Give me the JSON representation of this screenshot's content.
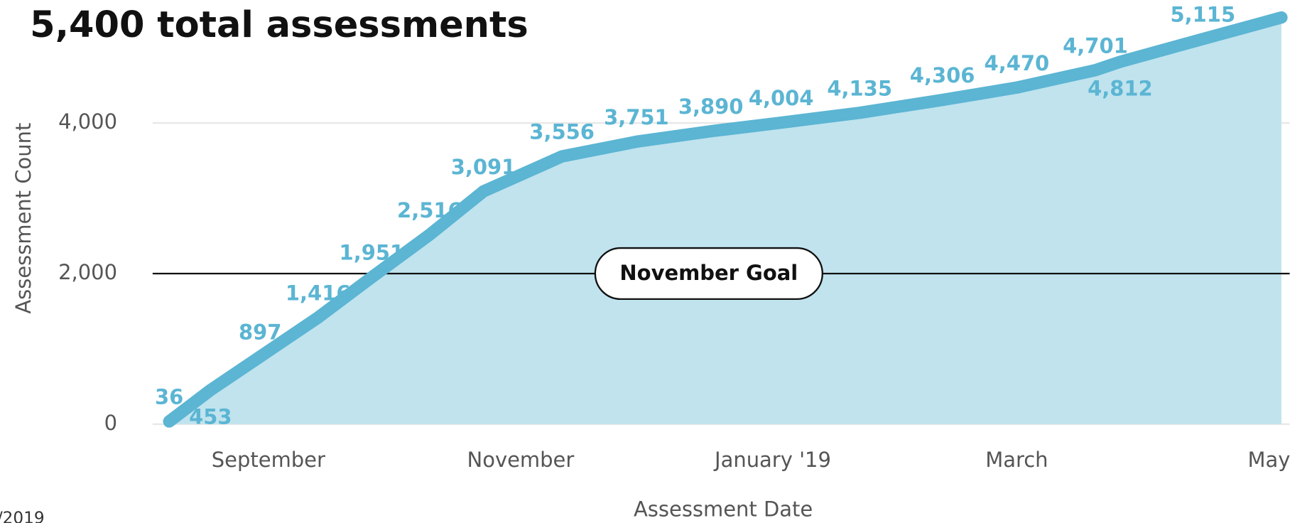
{
  "chart_data": {
    "type": "area",
    "title": "5,400 total assessments",
    "x_label": "Assessment Date",
    "y_label": "Assessment Count",
    "footer": "/2019",
    "x": [
      "2018-08-08",
      "2018-08-18",
      "2018-08-30",
      "2018-09-13",
      "2018-09-26",
      "2018-10-10",
      "2018-10-23",
      "2018-11-11",
      "2018-11-29",
      "2018-12-17",
      "2019-01-03",
      "2019-01-22",
      "2019-02-11",
      "2019-03-01",
      "2019-03-20",
      "2019-03-26",
      "2019-04-15",
      "2019-05-04"
    ],
    "series": [
      {
        "name": "Assessment Count",
        "color": "#5bb5d3",
        "fill": "#c0e3ee",
        "values": [
          36,
          453,
          897,
          1416,
          1951,
          2516,
          3091,
          3556,
          3751,
          3890,
          4004,
          4135,
          4306,
          4470,
          4701,
          4812,
          5115,
          5400
        ],
        "value_labels": [
          "36",
          "453",
          "897",
          "1,416",
          "1,951",
          "2,516",
          "3,091",
          "3,556",
          "3,751",
          "3,890",
          "4,004",
          "4,135",
          "4,306",
          "4,470",
          "4,701",
          "4,812",
          "5,115",
          null
        ]
      }
    ],
    "xlim": [
      "2018-08-04",
      "2019-05-06"
    ],
    "xticks": [
      {
        "value": "2018-09-01",
        "label": "September"
      },
      {
        "value": "2018-11-01",
        "label": "November"
      },
      {
        "value": "2019-01-01",
        "label": "January '19"
      },
      {
        "value": "2019-03-01",
        "label": "March"
      },
      {
        "value": "2019-05-01",
        "label": "May"
      }
    ],
    "ylim": [
      0,
      5600
    ],
    "yticks": [
      0,
      {
        "value": 2000,
        "label": "2,000"
      },
      {
        "value": 4000,
        "label": "4,000"
      }
    ],
    "grid": true,
    "goal": {
      "value": 2000,
      "label": "November Goal"
    }
  }
}
